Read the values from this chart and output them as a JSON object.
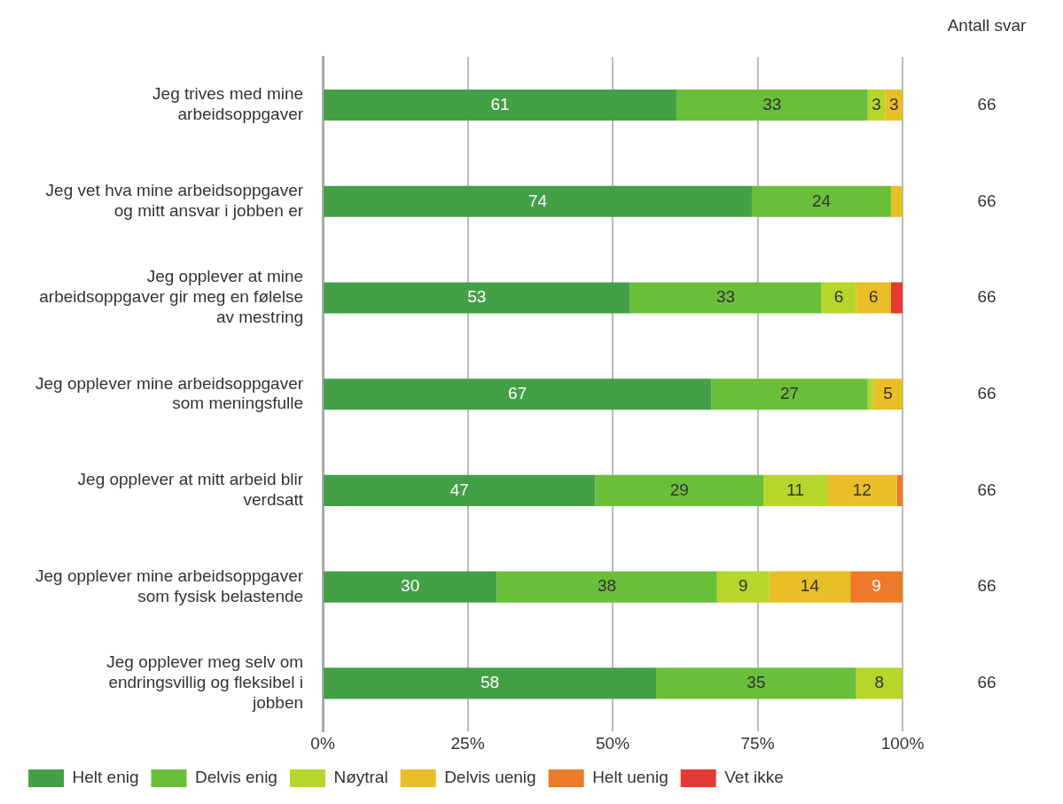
{
  "chart_data": {
    "type": "bar",
    "orientation": "horizontal",
    "stacked": true,
    "categories": [
      "Jeg trives med mine arbeidsoppgaver",
      "Jeg vet hva mine arbeidsoppgaver og mitt ansvar i jobben er",
      "Jeg opplever at mine arbeidsoppgaver gir meg en følelse av mestring",
      "Jeg opplever mine arbeidsoppgaver som meningsfulle",
      "Jeg opplever at mitt arbeid blir verdsatt",
      "Jeg opplever mine arbeidsoppgaver som fysisk belastende",
      "Jeg opplever meg selv om endringsvillig og fleksibel i jobben"
    ],
    "series": [
      {
        "name": "Helt enig",
        "color": "#43a047",
        "values": [
          61,
          74,
          53,
          67,
          47,
          30,
          57.5
        ],
        "value_labels": [
          "61",
          "74",
          "53",
          "67",
          "47",
          "30",
          "58"
        ]
      },
      {
        "name": "Delvis enig",
        "color": "#6abf3a",
        "values": [
          33,
          24,
          33,
          27,
          29,
          38,
          34.5
        ],
        "value_labels": [
          "33",
          "24",
          "33",
          "27",
          "29",
          "38",
          "35"
        ]
      },
      {
        "name": "Nøytral",
        "color": "#b5d62a",
        "values": [
          3,
          0,
          6,
          1,
          11,
          9,
          8
        ],
        "value_labels": [
          "3",
          null,
          "6",
          null,
          "11",
          "9",
          "8"
        ]
      },
      {
        "name": "Delvis uenig",
        "color": "#e8bf26",
        "values": [
          3,
          2,
          6,
          5,
          12,
          14,
          0
        ],
        "value_labels": [
          "3",
          null,
          "6",
          "5",
          "12",
          "14",
          null
        ]
      },
      {
        "name": "Helt uenig",
        "color": "#ec7a2a",
        "values": [
          0,
          0,
          0,
          0,
          1,
          9,
          0
        ],
        "value_labels": [
          null,
          null,
          null,
          null,
          null,
          "9",
          null
        ]
      },
      {
        "name": "Vet ikke",
        "color": "#e53935",
        "values": [
          0,
          0,
          2,
          0,
          0,
          0,
          0
        ],
        "value_labels": [
          null,
          null,
          null,
          null,
          null,
          null,
          null
        ]
      }
    ],
    "xlim": [
      0,
      100
    ],
    "xticks": [
      {
        "value": 0,
        "label": "0%"
      },
      {
        "value": 25,
        "label": "25%"
      },
      {
        "value": 50,
        "label": "50%"
      },
      {
        "value": 75,
        "label": "75%"
      },
      {
        "value": 100,
        "label": "100%"
      }
    ],
    "grid": "x",
    "legend": "bottom",
    "annotations": [
      "Antall svar",
      "66",
      "66",
      "66",
      "66",
      "66",
      "66",
      "66"
    ]
  }
}
